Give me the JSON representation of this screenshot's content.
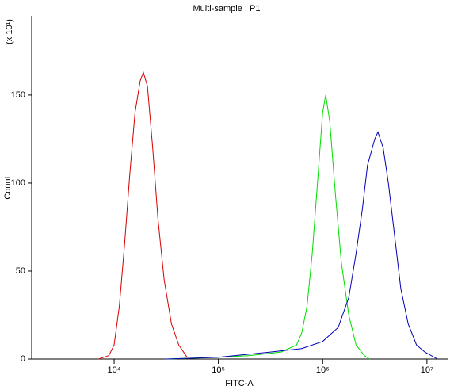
{
  "chart_data": {
    "type": "line",
    "title": "Multi-sample : P1",
    "x_label": "FITC-A",
    "y_label": "Count",
    "y_multiplier": "(x 10¹)",
    "xlog": true,
    "xlim": [
      1620,
      15800000
    ],
    "xticks": [
      {
        "value": 10000,
        "label": "10⁴"
      },
      {
        "value": 100000,
        "label": "10⁵"
      },
      {
        "value": 1000000,
        "label": "10⁶"
      },
      {
        "value": 10000000,
        "label": "10⁷"
      }
    ],
    "ylim": [
      0,
      195
    ],
    "yticks": [
      0,
      50,
      100,
      150
    ],
    "series": [
      {
        "color": "#d40000",
        "x": [
          7080,
          8910,
          10000,
          11220,
          12590,
          14130,
          15850,
          17780,
          19050,
          20890,
          23440,
          26300,
          30200,
          35480,
          41690,
          50120
        ],
        "values": [
          0,
          2,
          8,
          30,
          65,
          105,
          140,
          158,
          163,
          155,
          120,
          80,
          45,
          20,
          8,
          1
        ]
      },
      {
        "color": "#00dd00",
        "x": [
          31600,
          100000,
          200000,
          398000,
          562000,
          631000,
          708000,
          794000,
          891000,
          1000000,
          1070000,
          1170000,
          1320000,
          1510000,
          1780000,
          2090000,
          2510000,
          2820000
        ],
        "values": [
          0,
          1,
          2,
          4,
          8,
          15,
          30,
          60,
          100,
          140,
          150,
          135,
          95,
          55,
          25,
          8,
          2,
          0
        ]
      },
      {
        "color": "#0000b4",
        "x": [
          31600,
          100000,
          316000,
          631000,
          1000000,
          1410000,
          1780000,
          2090000,
          2400000,
          2690000,
          3160000,
          3390000,
          3800000,
          4270000,
          5010000,
          5620000,
          6610000,
          7940000,
          9550000,
          12600000
        ],
        "values": [
          0,
          1,
          4,
          6,
          10,
          18,
          35,
          60,
          85,
          110,
          125,
          129,
          120,
          100,
          65,
          40,
          20,
          8,
          4,
          0
        ]
      }
    ]
  }
}
